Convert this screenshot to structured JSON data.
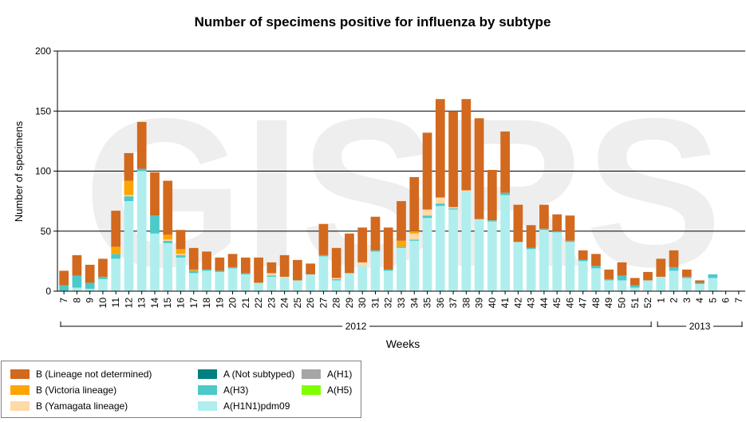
{
  "chart_data": {
    "type": "bar",
    "stacked": true,
    "title": "Number of specimens positive for influenza by subtype",
    "xlabel": "Weeks",
    "ylabel": "Number of specimens",
    "ylim": [
      0,
      200
    ],
    "yticks": [
      0,
      50,
      100,
      150,
      200
    ],
    "grid": true,
    "legend_position": "bottom-left",
    "watermark": "GISRS",
    "categories": [
      "7",
      "8",
      "9",
      "10",
      "11",
      "12",
      "13",
      "14",
      "15",
      "16",
      "17",
      "18",
      "19",
      "20",
      "21",
      "22",
      "23",
      "24",
      "25",
      "26",
      "27",
      "28",
      "29",
      "30",
      "31",
      "32",
      "33",
      "34",
      "35",
      "36",
      "37",
      "38",
      "39",
      "40",
      "41",
      "42",
      "43",
      "44",
      "45",
      "46",
      "47",
      "48",
      "49",
      "50",
      "51",
      "52",
      "1",
      "2",
      "3",
      "4",
      "5",
      "6",
      "7"
    ],
    "year_groups": [
      {
        "label": "2012",
        "from": "7",
        "to": "52"
      },
      {
        "label": "2013",
        "from": "1",
        "to": "7"
      }
    ],
    "series": [
      {
        "name": "A(H1N1)pdm09",
        "color": "#b0eeee",
        "values": [
          0,
          3,
          2,
          10,
          27,
          75,
          100,
          48,
          40,
          28,
          15,
          17,
          16,
          19,
          14,
          7,
          12,
          11,
          9,
          14,
          29,
          9,
          15,
          21,
          33,
          17,
          36,
          42,
          61,
          71,
          68,
          83,
          60,
          58,
          80,
          41,
          35,
          51,
          49,
          41,
          25,
          19,
          9,
          9,
          3,
          9,
          12,
          17,
          11,
          6,
          11,
          0,
          0
        ]
      },
      {
        "name": "A(H3)",
        "color": "#4cc9c9",
        "values": [
          5,
          10,
          5,
          2,
          4,
          4,
          2,
          15,
          2,
          2,
          2,
          1,
          1,
          1,
          1,
          0,
          1,
          0,
          0,
          0,
          1,
          1,
          0,
          0,
          1,
          1,
          1,
          1,
          2,
          2,
          1,
          0,
          0,
          1,
          2,
          0,
          1,
          1,
          1,
          1,
          1,
          2,
          1,
          4,
          2,
          0,
          0,
          3,
          1,
          1,
          3,
          0,
          0
        ]
      },
      {
        "name": "A(H1)",
        "color": "#a6a6a6",
        "values": [
          0,
          0,
          0,
          0,
          0,
          0,
          0,
          0,
          0,
          0,
          0,
          0,
          0,
          0,
          0,
          0,
          0,
          0,
          0,
          0,
          0,
          0,
          0,
          0,
          0,
          0,
          0,
          0,
          0,
          0,
          0,
          0,
          0,
          0,
          0,
          0,
          0,
          0,
          0,
          0,
          0,
          0,
          0,
          0,
          0,
          0,
          0,
          0,
          0,
          0,
          0,
          0,
          0
        ]
      },
      {
        "name": "A(H5)",
        "color": "#80ff00",
        "values": [
          0,
          0,
          0,
          0,
          0,
          0,
          0,
          0,
          0,
          0,
          0,
          0,
          0,
          0,
          0,
          0,
          0,
          0,
          0,
          0,
          0,
          0,
          0,
          0,
          0,
          0,
          0,
          0,
          0,
          0,
          0,
          0,
          0,
          0,
          0,
          0,
          0,
          0,
          0,
          0,
          0,
          0,
          0,
          0,
          0,
          0,
          0,
          0,
          0,
          0,
          0,
          0,
          0
        ]
      },
      {
        "name": "A (Not subtyped)",
        "color": "#008080",
        "values": [
          0,
          0,
          0,
          0,
          0,
          0,
          0,
          0,
          0,
          0,
          0,
          0,
          0,
          0,
          0,
          0,
          0,
          0,
          0,
          0,
          0,
          0,
          0,
          0,
          0,
          0,
          0,
          0,
          0,
          0,
          0,
          0,
          0,
          0,
          0,
          0,
          0,
          0,
          0,
          0,
          0,
          0,
          0,
          0,
          0,
          0,
          0,
          0,
          0,
          0,
          0,
          0,
          0
        ]
      },
      {
        "name": "B (Yamagata lineage)",
        "color": "#ffd9a6",
        "values": [
          0,
          0,
          0,
          0,
          0,
          1,
          0,
          0,
          1,
          1,
          0,
          0,
          0,
          0,
          0,
          0,
          2,
          1,
          0,
          0,
          0,
          1,
          0,
          3,
          0,
          0,
          0,
          5,
          5,
          5,
          1,
          1,
          0,
          0,
          0,
          0,
          0,
          0,
          0,
          0,
          0,
          0,
          0,
          0,
          0,
          0,
          0,
          0,
          0,
          0,
          0,
          0,
          0
        ]
      },
      {
        "name": "B (Victoria lineage)",
        "color": "#ffa500",
        "values": [
          0,
          0,
          0,
          0,
          6,
          12,
          0,
          0,
          4,
          4,
          1,
          0,
          0,
          0,
          0,
          0,
          0,
          0,
          0,
          0,
          0,
          0,
          0,
          0,
          0,
          0,
          5,
          2,
          0,
          0,
          0,
          0,
          0,
          0,
          0,
          0,
          0,
          0,
          0,
          0,
          0,
          0,
          0,
          0,
          0,
          0,
          0,
          0,
          0,
          0,
          0,
          0,
          0
        ]
      },
      {
        "name": "B (Lineage not determined)",
        "color": "#d2691e",
        "values": [
          12,
          17,
          15,
          15,
          30,
          23,
          39,
          36,
          45,
          16,
          18,
          15,
          11,
          11,
          13,
          21,
          9,
          18,
          17,
          9,
          26,
          25,
          33,
          29,
          28,
          35,
          33,
          45,
          64,
          82,
          80,
          76,
          84,
          42,
          51,
          31,
          19,
          20,
          14,
          21,
          8,
          10,
          8,
          11,
          6,
          7,
          15,
          14,
          6,
          2,
          0,
          0,
          0
        ]
      }
    ]
  },
  "legend": {
    "items": [
      {
        "label": "B (Lineage not determined)",
        "color": "#d2691e"
      },
      {
        "label": "B (Victoria lineage)",
        "color": "#ffa500"
      },
      {
        "label": "B (Yamagata lineage)",
        "color": "#ffd9a6"
      },
      {
        "label": "A (Not subtyped)",
        "color": "#008080"
      },
      {
        "label": "A(H3)",
        "color": "#4cc9c9"
      },
      {
        "label": "A(H1N1)pdm09",
        "color": "#b0eeee"
      },
      {
        "label": "A(H1)",
        "color": "#a6a6a6"
      },
      {
        "label": "A(H5)",
        "color": "#80ff00"
      }
    ]
  }
}
